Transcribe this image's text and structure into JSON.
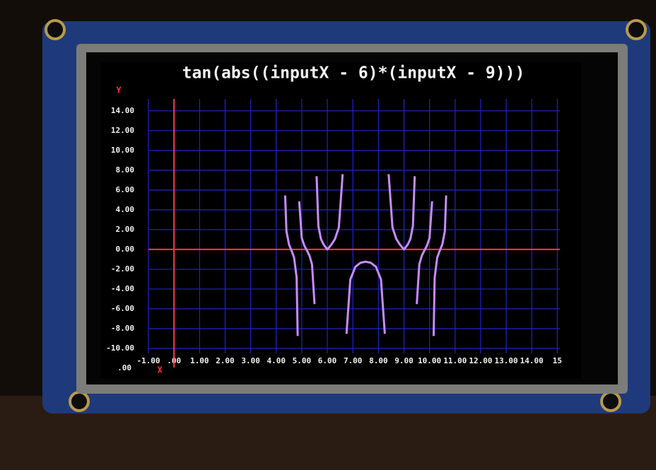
{
  "chart_data": {
    "type": "line",
    "title": "tan(abs((inputX - 6)*(inputX - 9)))",
    "x_label": "X",
    "y_label": "Y",
    "corner_label": ".00",
    "xlim": [
      -1,
      15.1
    ],
    "ylim": [
      -10.5,
      15.2
    ],
    "xticks": [
      {
        "value": -1,
        "label": "-1.00"
      },
      {
        "value": 0,
        "label": ".00"
      },
      {
        "value": 1,
        "label": "1.00"
      },
      {
        "value": 2,
        "label": "2.00"
      },
      {
        "value": 3,
        "label": "3.00"
      },
      {
        "value": 4,
        "label": "4.00"
      },
      {
        "value": 5,
        "label": "5.00"
      },
      {
        "value": 6,
        "label": "6.00"
      },
      {
        "value": 7,
        "label": "7.00"
      },
      {
        "value": 8,
        "label": "8.00"
      },
      {
        "value": 9,
        "label": "9.00"
      },
      {
        "value": 10,
        "label": "10.00"
      },
      {
        "value": 11,
        "label": "11.00"
      },
      {
        "value": 12,
        "label": "12.00"
      },
      {
        "value": 13,
        "label": "13.00"
      },
      {
        "value": 14,
        "label": "14.00"
      },
      {
        "value": 15,
        "label": "15"
      }
    ],
    "yticks": [
      {
        "value": 14,
        "label": "14.00"
      },
      {
        "value": 12,
        "label": "12.00"
      },
      {
        "value": 10,
        "label": "10.00"
      },
      {
        "value": 8,
        "label": "8.00"
      },
      {
        "value": 6,
        "label": "6.00"
      },
      {
        "value": 4,
        "label": "4.00"
      },
      {
        "value": 2,
        "label": "2.00"
      },
      {
        "value": 0,
        "label": "0.00"
      },
      {
        "value": -2,
        "label": "-2.00"
      },
      {
        "value": -4,
        "label": "-4.00"
      },
      {
        "value": -6,
        "label": "-6.00"
      },
      {
        "value": -8,
        "label": "-8.00"
      },
      {
        "value": -10,
        "label": "-10.00"
      }
    ],
    "grid": true,
    "grid_color": "#2323c8",
    "axis_color": "#ff3a3a",
    "x": [
      4.35,
      4.4,
      4.5,
      4.6,
      4.7,
      4.8,
      4.84,
      4.861,
      4.9,
      5.0,
      5.1,
      5.2,
      5.3,
      5.4,
      5.5,
      5.545,
      5.58,
      5.65,
      5.75,
      5.85,
      6.0,
      6.15,
      6.3,
      6.45,
      6.6,
      6.676,
      6.75,
      6.9,
      7.1,
      7.3,
      7.5,
      7.7,
      7.9,
      8.1,
      8.25,
      8.324,
      8.4,
      8.55,
      8.7,
      8.85,
      9.0,
      9.15,
      9.25,
      9.35,
      9.42,
      9.455,
      9.5,
      9.6,
      9.7,
      9.8,
      9.9,
      10.0,
      10.1,
      10.139,
      10.16,
      10.2,
      10.3,
      10.4,
      10.5,
      10.6,
      10.65
    ],
    "series": [
      {
        "color": "#c68cff",
        "values": [
          5.45,
          1.853,
          0.504,
          -0.124,
          -0.831,
          -2.87,
          -8.74,
          null,
          4.86,
          1.158,
          0.386,
          -0.102,
          -0.616,
          -1.497,
          -5.52,
          null,
          7.4,
          2.373,
          1.058,
          0.511,
          0,
          0.456,
          1.054,
          2.218,
          7.6,
          null,
          -8.53,
          -3.03,
          -1.741,
          -1.346,
          -1.238,
          -1.346,
          -1.741,
          -3.03,
          -8.53,
          null,
          7.6,
          2.218,
          1.054,
          0.456,
          0,
          0.511,
          1.058,
          2.373,
          7.4,
          null,
          -5.52,
          -1.497,
          -0.616,
          -0.102,
          0.386,
          1.158,
          4.86,
          null,
          -8.74,
          -2.87,
          -0.831,
          -0.124,
          0.504,
          1.853,
          5.45
        ]
      }
    ]
  }
}
